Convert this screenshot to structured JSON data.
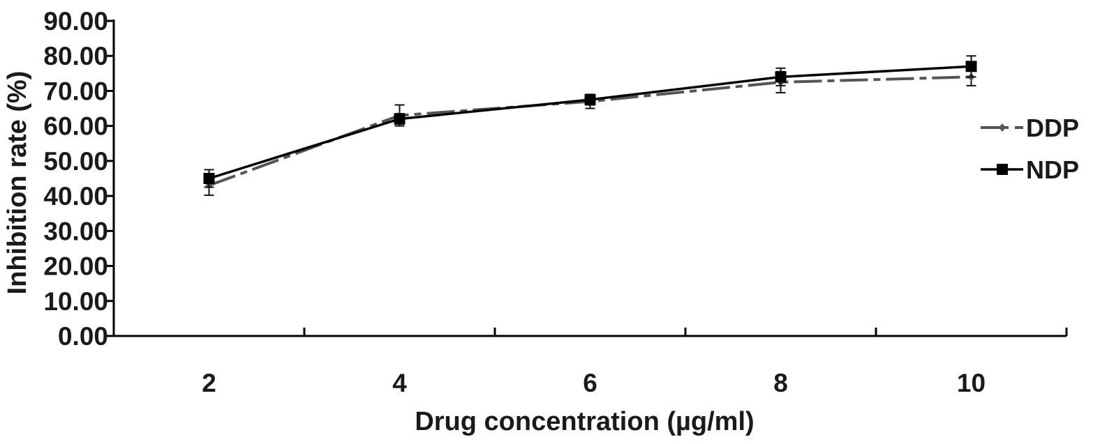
{
  "chart_data": {
    "type": "line",
    "title": "",
    "xlabel": "Drug concentration (µg/ml)",
    "ylabel": "Inhibition rate (%)",
    "x": [
      2,
      4,
      6,
      8,
      10
    ],
    "x_tick_labels": [
      "2",
      "4",
      "6",
      "8",
      "10"
    ],
    "x_range": [
      1,
      11
    ],
    "ylim": [
      0,
      90
    ],
    "y_ticks": [
      0,
      10,
      20,
      30,
      40,
      50,
      60,
      70,
      80,
      90
    ],
    "y_tick_labels": [
      "0.00",
      "10.00",
      "20.00",
      "30.00",
      "40.00",
      "50.00",
      "60.00",
      "70.00",
      "80.00",
      "90.00"
    ],
    "grid": false,
    "legend_position": "right",
    "series": [
      {
        "name": "DDP",
        "values": [
          43.0,
          63.0,
          67.0,
          72.5,
          74.0
        ],
        "errors": [
          2.8,
          3.0,
          2.0,
          3.0,
          2.5
        ],
        "color": "#555555",
        "line_style": "dashed",
        "marker": "diamond"
      },
      {
        "name": "NDP",
        "values": [
          45.0,
          62.0,
          67.5,
          74.0,
          77.0
        ],
        "errors": [
          2.5,
          1.5,
          1.5,
          2.5,
          3.0
        ],
        "color": "#000000",
        "line_style": "solid",
        "marker": "square"
      }
    ]
  }
}
